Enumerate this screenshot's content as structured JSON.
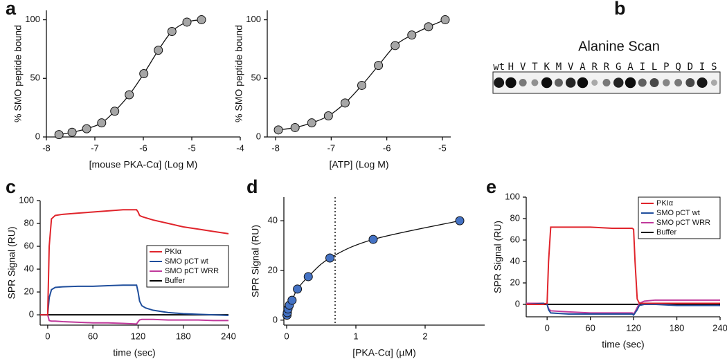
{
  "chart_data": [
    {
      "type": "scatter",
      "label": "a",
      "xlabel": "[mouse PKA-Cα] (Log M)",
      "ylabel": "% SMO peptide bound",
      "xlim": [
        -8,
        -4
      ],
      "xticks": [
        -8,
        -7,
        -6,
        -5,
        -4
      ],
      "ylim": [
        0,
        108
      ],
      "yticks": [
        0,
        50,
        100
      ],
      "line": true,
      "series": [
        {
          "color": "#a6a6a6",
          "x": [
            -7.74,
            -7.47,
            -7.17,
            -6.86,
            -6.59,
            -6.29,
            -5.99,
            -5.69,
            -5.41,
            -5.1,
            -4.8
          ],
          "values": [
            2,
            4,
            7,
            12,
            22,
            36,
            54,
            74,
            90,
            98,
            100
          ]
        }
      ]
    },
    {
      "type": "scatter",
      "xlabel": "[ATP] (Log M)",
      "ylabel": "% SMO peptide bound",
      "xlim": [
        -8.15,
        -4.85
      ],
      "xticks": [
        -8,
        -7,
        -6,
        -5
      ],
      "ylim": [
        0,
        108
      ],
      "yticks": [
        0,
        50,
        100
      ],
      "line": true,
      "series": [
        {
          "color": "#a6a6a6",
          "x": [
            -7.95,
            -7.65,
            -7.35,
            -7.05,
            -6.75,
            -6.45,
            -6.15,
            -5.85,
            -5.55,
            -5.25,
            -4.95
          ],
          "values": [
            6,
            8,
            12,
            18,
            29,
            44,
            61,
            78,
            87,
            94,
            100
          ]
        }
      ]
    },
    {
      "type": "blot",
      "label": "b",
      "title": "Alanine Scan",
      "categories": [
        "wt",
        "H",
        "V",
        "T",
        "K",
        "M",
        "V",
        "A",
        "R",
        "R",
        "G",
        "A",
        "I",
        "L",
        "P",
        "Q",
        "D",
        "I",
        "S"
      ],
      "values": [
        0.9,
        0.95,
        0.5,
        0.4,
        0.95,
        0.6,
        0.85,
        0.95,
        0.3,
        0.5,
        0.85,
        0.95,
        0.6,
        0.7,
        0.45,
        0.5,
        0.7,
        0.9,
        0.3
      ]
    },
    {
      "type": "line",
      "label": "c",
      "xlabel": "time (sec)",
      "ylabel": "SPR Signal (RU)",
      "xlim": [
        -10,
        240
      ],
      "xticks": [
        0,
        60,
        120,
        180,
        240
      ],
      "ylim": [
        -9,
        100
      ],
      "yticks": [
        0,
        20,
        40,
        60,
        80,
        100
      ],
      "legend": "lower right",
      "x": [
        -10,
        -1,
        0,
        2,
        5,
        10,
        20,
        40,
        60,
        80,
        100,
        118,
        120,
        122,
        125,
        130,
        140,
        160,
        180,
        200,
        220,
        240
      ],
      "series": [
        {
          "name": "PKIα",
          "color": "#e0242b",
          "values": [
            0,
            0,
            0,
            60,
            84,
            87,
            88,
            89,
            90,
            91,
            92,
            92,
            90,
            87,
            86,
            85,
            83,
            80,
            77,
            75,
            73,
            71
          ]
        },
        {
          "name": "SMO pCT wt",
          "color": "#1f4e9c",
          "values": [
            0,
            0,
            0,
            15,
            22,
            24,
            24.5,
            25,
            25,
            25.5,
            26,
            26,
            20,
            12,
            8,
            6,
            4,
            2,
            1,
            0.5,
            0,
            -0.5
          ]
        },
        {
          "name": "SMO pCT WRR",
          "color": "#c0399b",
          "values": [
            0,
            0,
            0,
            -5,
            -5.5,
            -5.5,
            -6,
            -6.5,
            -7,
            -7,
            -7.5,
            -8,
            -6,
            -4.5,
            -4,
            -4,
            -4,
            -4.5,
            -4.5,
            -4.5,
            -5,
            -5
          ]
        },
        {
          "name": "Buffer",
          "color": "#000000",
          "values": [
            0,
            0,
            0,
            0,
            0,
            0,
            0,
            0,
            0,
            0,
            0,
            0,
            0,
            0,
            0,
            0,
            0,
            0,
            0,
            0,
            0,
            0
          ]
        }
      ]
    },
    {
      "type": "scatter",
      "label": "d",
      "xlabel": "[PKA-Cα] (µM)",
      "ylabel": "SPR Signal (RU)",
      "xlim": [
        -0.04,
        2.86
      ],
      "xticks": [
        0,
        1,
        2
      ],
      "ylim": [
        -2,
        49.5
      ],
      "yticks": [
        0,
        20,
        40
      ],
      "line": true,
      "vline": 0.7,
      "series": [
        {
          "color": "#4472c4",
          "x": [
            0.0049,
            0.0098,
            0.0195,
            0.039,
            0.078,
            0.156,
            0.3125,
            0.625,
            1.25,
            2.5
          ],
          "values": [
            2,
            3,
            4.5,
            6,
            8,
            12.5,
            17.5,
            25,
            32.5,
            40
          ]
        }
      ]
    },
    {
      "type": "line",
      "label": "e",
      "xlabel": "time (sec)",
      "ylabel": "SPR Signal (RU)",
      "xlim": [
        -29,
        240
      ],
      "xticks": [
        0,
        60,
        120,
        180,
        240
      ],
      "ylim": [
        -11.6,
        100
      ],
      "yticks": [
        0,
        20,
        40,
        60,
        80,
        100
      ],
      "legend": "upper right",
      "x": [
        -29,
        -5,
        0,
        2,
        5,
        30,
        60,
        90,
        118,
        120,
        122,
        125,
        128,
        135,
        150,
        180,
        210,
        240
      ],
      "series": [
        {
          "name": "PKIα",
          "color": "#e0242b",
          "values": [
            0,
            0,
            1,
            40,
            72,
            72,
            72,
            71,
            71,
            70,
            40,
            5,
            1,
            1,
            1,
            1,
            1,
            1
          ]
        },
        {
          "name": "SMO pCT wt",
          "color": "#1f4e9c",
          "values": [
            0,
            1,
            0,
            -5,
            -8,
            -9,
            -9,
            -9,
            -9,
            -10,
            -8,
            -5,
            -1,
            0,
            0,
            -1,
            -1,
            -1
          ]
        },
        {
          "name": "SMO pCT WRR",
          "color": "#c0399b",
          "values": [
            1,
            1,
            0,
            -4,
            -6,
            -7,
            -8,
            -8,
            -8,
            -9,
            -7,
            -3,
            1,
            3,
            4,
            4,
            4,
            4
          ]
        },
        {
          "name": "Buffer",
          "color": "#000000",
          "values": [
            0,
            0,
            0,
            0,
            0,
            0,
            0,
            0,
            0,
            0,
            0,
            0,
            0,
            0,
            0,
            0,
            0,
            0
          ]
        }
      ]
    }
  ]
}
